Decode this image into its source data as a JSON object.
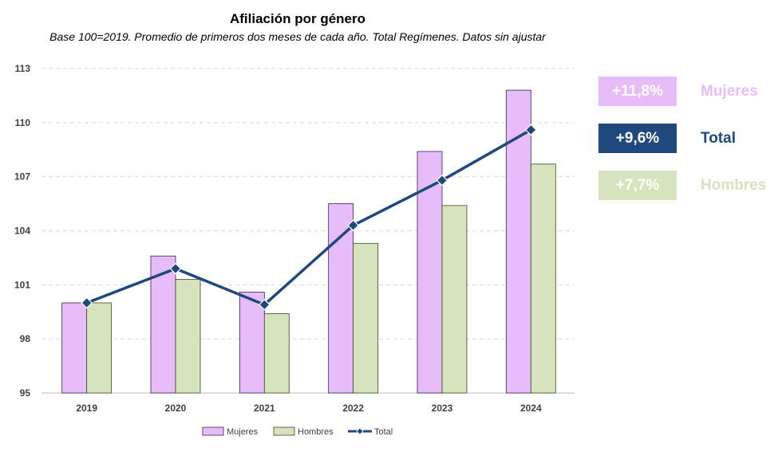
{
  "colors": {
    "mujeres": "#E6BCFB",
    "hombres": "#D6E3BD",
    "total": "#1F497D",
    "grid": "#D9D9D9",
    "axis": "#BFBFBF"
  },
  "summary": [
    {
      "value": "+11,8%",
      "label": "Mujeres",
      "bg": "#E6BCFB",
      "label_color": "#E6BCFB"
    },
    {
      "value": "+9,6%",
      "label": "Total",
      "bg": "#1F497D",
      "label_color": "#1F497D"
    },
    {
      "value": "+7,7%",
      "label": "Hombres",
      "bg": "#D6E3BD",
      "label_color": "#D6E3BD"
    }
  ],
  "chart_data": {
    "type": "bar",
    "title": "Afiliación por género",
    "subtitle": "Base 100=2019. Promedio de primeros dos meses de cada año. Total Regímenes. Datos sin ajustar",
    "categories": [
      "2019",
      "2020",
      "2021",
      "2022",
      "2023",
      "2024"
    ],
    "series": [
      {
        "name": "Mujeres",
        "kind": "bar",
        "values": [
          100.0,
          102.6,
          100.6,
          105.5,
          108.4,
          111.8
        ]
      },
      {
        "name": "Hombres",
        "kind": "bar",
        "values": [
          100.0,
          101.3,
          99.4,
          103.3,
          105.4,
          107.7
        ]
      },
      {
        "name": "Total",
        "kind": "line",
        "values": [
          100.0,
          101.9,
          99.9,
          104.3,
          106.8,
          109.6
        ]
      }
    ],
    "ylim": [
      95,
      113
    ],
    "yticks": [
      "95",
      "98",
      "101",
      "104",
      "107",
      "110",
      "113"
    ],
    "grid": true,
    "legend": "bottom"
  }
}
